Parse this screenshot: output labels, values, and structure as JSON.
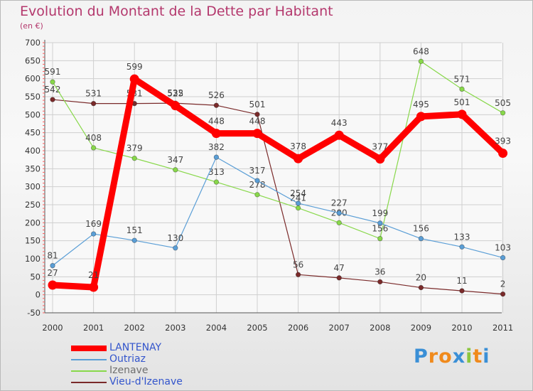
{
  "chart_data": {
    "type": "line",
    "title": "Evolution du Montant de la Dette par Habitant",
    "subtitle": "(en €)",
    "xlabel": "",
    "ylabel": "",
    "x": [
      "2000",
      "2001",
      "2002",
      "2003",
      "2004",
      "2005",
      "2006",
      "2007",
      "2008",
      "2009",
      "2010",
      "2011"
    ],
    "yticks": [
      "-50",
      "0",
      "50",
      "100",
      "150",
      "200",
      "250",
      "300",
      "350",
      "400",
      "450",
      "500",
      "550",
      "600",
      "650",
      "700"
    ],
    "ylim": [
      -50,
      700
    ],
    "grid": true,
    "legend_position": "bottom-left",
    "series": [
      {
        "name": "Vieu-d'Izenave",
        "color": "#7a2a2a",
        "values": [
          542,
          531,
          531,
          532,
          526,
          501,
          56,
          47,
          36,
          20,
          11,
          2
        ]
      },
      {
        "name": "Izenave",
        "color": "#88d84a",
        "values": [
          591,
          408,
          379,
          347,
          313,
          278,
          241,
          200,
          156,
          648,
          571,
          505
        ]
      },
      {
        "name": "Outriaz",
        "color": "#5a9ed6",
        "values": [
          81,
          169,
          151,
          130,
          382,
          317,
          254,
          227,
          199,
          156,
          133,
          103
        ]
      },
      {
        "name": "LANTENAY",
        "color": "#ff0000",
        "values": [
          27,
          21,
          599,
          525,
          448,
          448,
          378,
          443,
          377,
          495,
          501,
          393
        ]
      }
    ]
  },
  "legend": {
    "items": [
      {
        "label": "LANTENAY",
        "color": "#ff0000"
      },
      {
        "label": "Outriaz",
        "color": "#5a9ed6"
      },
      {
        "label": "Izenave",
        "color": "#88d84a"
      },
      {
        "label": "Vieu-d'Izenave",
        "color": "#7a2a2a"
      }
    ]
  },
  "logo": {
    "text": "Proxiti",
    "letters": [
      "P",
      "r",
      "o",
      "x",
      "i",
      "t",
      "i"
    ],
    "colors": [
      "#3a8fd6",
      "#f08a1c",
      "#f08a1c",
      "#3a8fd6",
      "#8cc63f",
      "#f08a1c",
      "#3a8fd6"
    ]
  }
}
